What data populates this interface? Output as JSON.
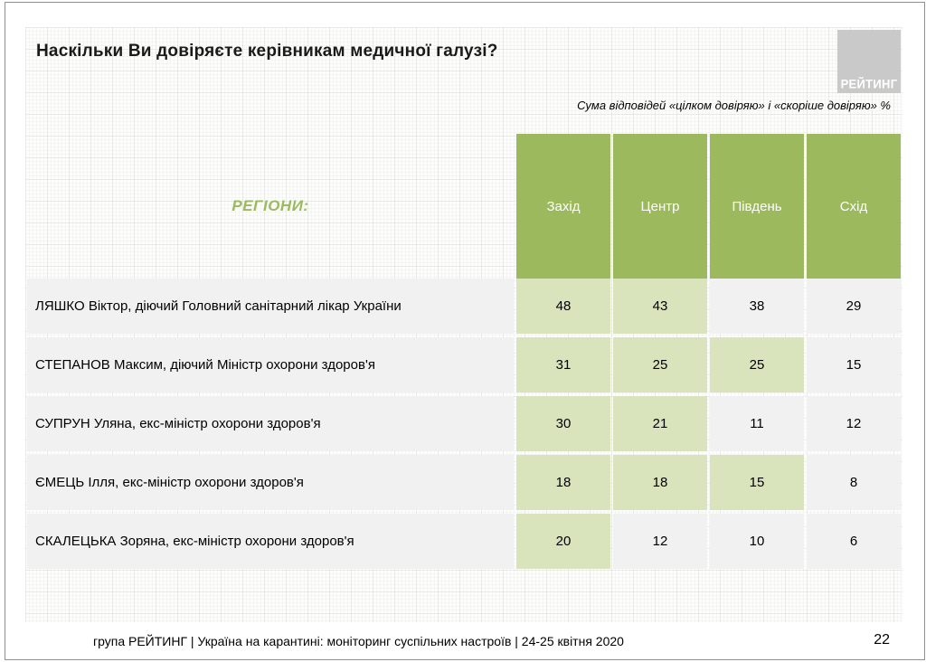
{
  "slide": {
    "title": "Наскільки Ви довіряєте керівникам медичної галузі?",
    "subtitle": "Сума відповідей «цілком довіряю» і «скоріше довіряю» %",
    "logo_text": "РЕЙТИНГ",
    "footer": "група РЕЙТИНГ | Україна на карантині: моніторинг суспільних настроїв  | 24-25 квітня  2020",
    "page_number": "22"
  },
  "colors": {
    "header_green": "#9cba5d",
    "highlight_green": "#d9e4bc",
    "row_gray": "#f1f1f1",
    "logo_gray": "#c9c9c9"
  },
  "chart_data": {
    "type": "table",
    "title": "Наскільки Ви довіряєте керівникам медичної галузі?",
    "subtitle": "Сума відповідей «цілком довіряю» і «скоріше довіряю» %",
    "row_header_label": "РЕГІОНИ:",
    "columns": [
      "Захід",
      "Центр",
      "Південь",
      "Схід"
    ],
    "rows": [
      {
        "label": "ЛЯШКО Віктор, діючий Головний санітарний лікар України",
        "values": [
          48,
          43,
          38,
          29
        ],
        "highlight": [
          true,
          true,
          false,
          false
        ]
      },
      {
        "label": "СТЕПАНОВ Максим, діючий Міністр охорони здоров'я",
        "values": [
          31,
          25,
          25,
          15
        ],
        "highlight": [
          true,
          true,
          true,
          false
        ]
      },
      {
        "label": "СУПРУН Уляна, екс-міністр охорони здоров'я",
        "values": [
          30,
          21,
          11,
          12
        ],
        "highlight": [
          true,
          true,
          false,
          false
        ]
      },
      {
        "label": "ЄМЕЦЬ Ілля, екс-міністр охорони здоров'я",
        "values": [
          18,
          18,
          15,
          8
        ],
        "highlight": [
          true,
          true,
          true,
          false
        ]
      },
      {
        "label": "СКАЛЕЦЬКА Зоряна, екс-міністр охорони здоров'я",
        "values": [
          20,
          12,
          10,
          6
        ],
        "highlight": [
          true,
          false,
          false,
          false
        ]
      }
    ]
  }
}
